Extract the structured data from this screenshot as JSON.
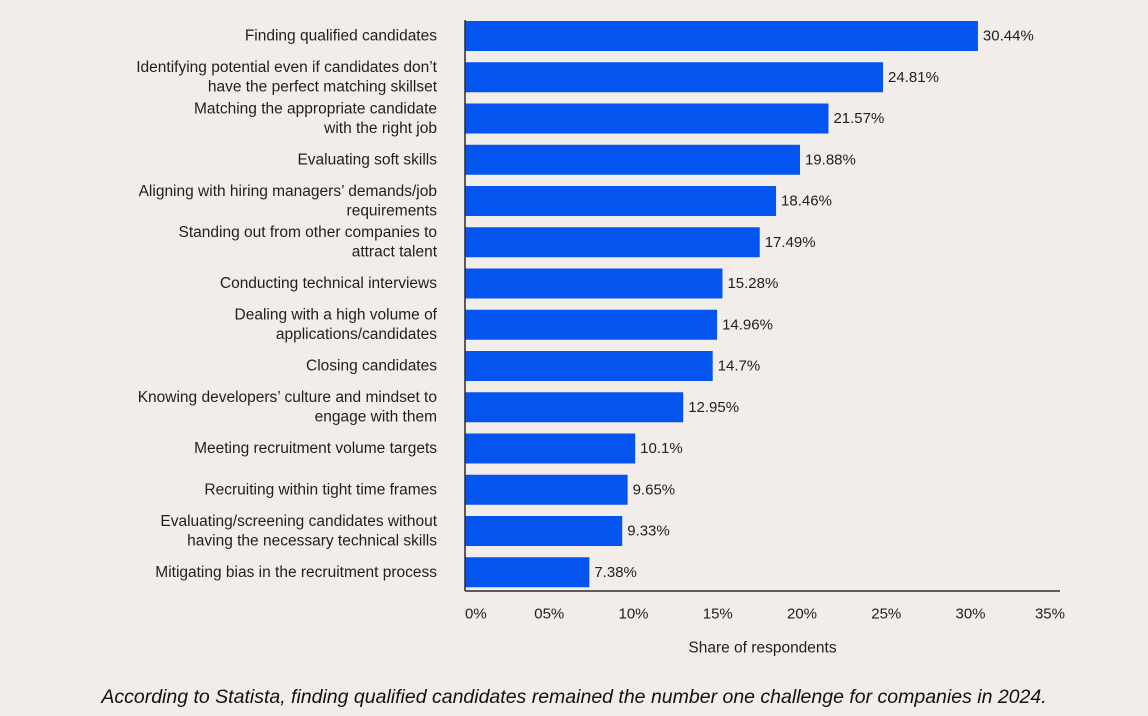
{
  "chart_data": {
    "type": "bar",
    "orientation": "horizontal",
    "categories": [
      "Finding qualified candidates",
      "Identifying potential even if candidates don’t have the  perfect matching skillset",
      "Matching the appropriate candidate with the right job",
      "Evaluating soft skills",
      "Aligning with hiring managers’ demands/job requirements",
      "Standing out from other companies to attract talent",
      "Conducting technical interviews",
      "Dealing with a high volume of applications/candidates",
      "Closing candidates",
      "Knowing developers’ culture and mindset to engage with them",
      "Meeting recruitment volume targets",
      "Recruiting within tight time frames",
      "Evaluating/screening candidates without having the necessary technical skills",
      "Mitigating bias in the recruitment process"
    ],
    "category_lines": [
      [
        "Finding qualified candidates"
      ],
      [
        "Identifying potential even if candidates don’t",
        "have the  perfect matching skillset"
      ],
      [
        "Matching the appropriate candidate",
        "with the right job"
      ],
      [
        "Evaluating soft skills"
      ],
      [
        "Aligning with hiring managers’ demands/job",
        "requirements"
      ],
      [
        "Standing out from other companies to",
        "attract talent"
      ],
      [
        "Conducting technical interviews"
      ],
      [
        "Dealing with a high volume of",
        "applications/candidates"
      ],
      [
        "Closing candidates"
      ],
      [
        "Knowing developers’ culture and mindset to",
        "engage with them"
      ],
      [
        "Meeting recruitment volume targets"
      ],
      [
        "Recruiting within tight time frames"
      ],
      [
        "Evaluating/screening candidates without",
        "having the necessary technical skills"
      ],
      [
        "Mitigating bias in the recruitment process"
      ]
    ],
    "values": [
      30.44,
      24.81,
      21.57,
      19.88,
      18.46,
      17.49,
      15.28,
      14.96,
      14.7,
      12.95,
      10.1,
      9.65,
      9.33,
      7.38
    ],
    "value_labels": [
      "30.44%",
      "24.81%",
      "21.57%",
      "19.88%",
      "18.46%",
      "17.49%",
      "15.28%",
      "14.96%",
      "14.7%",
      "12.95%",
      "10.1%",
      "9.65%",
      "9.33%",
      "7.38%"
    ],
    "x_ticks": [
      0,
      5,
      10,
      15,
      20,
      25,
      30,
      35
    ],
    "x_tick_labels": [
      "0%",
      "05%",
      "10%",
      "15%",
      "20%",
      "25%",
      "30%",
      "35%"
    ],
    "xlim": [
      0,
      35
    ],
    "xlabel": "Share of respondents",
    "ylabel": "",
    "title": "",
    "grid": false,
    "legend": "none",
    "bar_color": "#0454ef",
    "axis_color": "#2b2b2b"
  },
  "caption": "According to Statista, finding qualified candidates remained the number one challenge for companies in 2024."
}
